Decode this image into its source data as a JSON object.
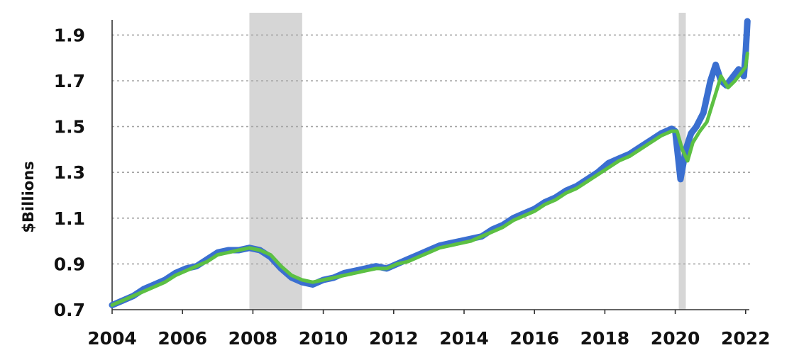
{
  "chart_data": {
    "type": "line",
    "title": "",
    "xlabel": "",
    "ylabel": "$Billions",
    "xlim": [
      2004,
      2022.1
    ],
    "ylim": [
      0.7,
      1.95
    ],
    "yticks": [
      "0.7",
      "0.9",
      "1.1",
      "1.3",
      "1.5",
      "1.7",
      "1.9"
    ],
    "xticks": [
      "2004",
      "2006",
      "2008",
      "2010",
      "2012",
      "2014",
      "2016",
      "2018",
      "2020",
      "2022"
    ],
    "grid": "horizontal-dotted",
    "legend": "none",
    "recessions": [
      [
        2007.9,
        2009.4
      ],
      [
        2020.1,
        2020.3
      ]
    ],
    "series": [
      {
        "color": "#3a6fd0",
        "role": "monthly",
        "x": [
          2004.0,
          2004.3,
          2004.6,
          2004.9,
          2005.2,
          2005.5,
          2005.8,
          2006.1,
          2006.4,
          2006.7,
          2007.0,
          2007.3,
          2007.6,
          2007.9,
          2008.2,
          2008.5,
          2008.8,
          2009.1,
          2009.4,
          2009.7,
          2010.0,
          2010.3,
          2010.6,
          2010.9,
          2011.2,
          2011.5,
          2011.8,
          2012.1,
          2012.4,
          2012.7,
          2013.0,
          2013.3,
          2013.6,
          2013.9,
          2014.2,
          2014.5,
          2014.8,
          2015.1,
          2015.4,
          2015.7,
          2016.0,
          2016.3,
          2016.6,
          2016.9,
          2017.2,
          2017.5,
          2017.8,
          2018.1,
          2018.4,
          2018.7,
          2019.0,
          2019.3,
          2019.6,
          2019.9,
          2020.0,
          2020.15,
          2020.3,
          2020.45,
          2020.6,
          2020.8,
          2021.0,
          2021.15,
          2021.3,
          2021.45,
          2021.6,
          2021.8,
          2021.95,
          2022.0,
          2022.05
        ],
        "values": [
          0.72,
          0.74,
          0.76,
          0.79,
          0.81,
          0.83,
          0.86,
          0.88,
          0.89,
          0.92,
          0.95,
          0.96,
          0.96,
          0.97,
          0.96,
          0.93,
          0.88,
          0.84,
          0.82,
          0.81,
          0.83,
          0.84,
          0.86,
          0.87,
          0.88,
          0.89,
          0.88,
          0.9,
          0.92,
          0.94,
          0.96,
          0.98,
          0.99,
          1.0,
          1.01,
          1.02,
          1.05,
          1.07,
          1.1,
          1.12,
          1.14,
          1.17,
          1.19,
          1.22,
          1.24,
          1.27,
          1.3,
          1.34,
          1.36,
          1.38,
          1.41,
          1.44,
          1.47,
          1.49,
          1.48,
          1.27,
          1.4,
          1.47,
          1.5,
          1.56,
          1.7,
          1.77,
          1.7,
          1.68,
          1.71,
          1.75,
          1.72,
          1.82,
          1.96
        ]
      },
      {
        "color": "#5cc043",
        "role": "trend",
        "x": [
          2004.0,
          2004.3,
          2004.6,
          2004.9,
          2005.2,
          2005.5,
          2005.8,
          2006.1,
          2006.4,
          2006.7,
          2007.0,
          2007.3,
          2007.6,
          2007.9,
          2008.2,
          2008.5,
          2008.8,
          2009.1,
          2009.4,
          2009.7,
          2010.0,
          2010.3,
          2010.6,
          2010.9,
          2011.2,
          2011.5,
          2011.8,
          2012.1,
          2012.4,
          2012.7,
          2013.0,
          2013.3,
          2013.6,
          2013.9,
          2014.2,
          2014.5,
          2014.8,
          2015.1,
          2015.4,
          2015.7,
          2016.0,
          2016.3,
          2016.6,
          2016.9,
          2017.2,
          2017.5,
          2017.8,
          2018.1,
          2018.4,
          2018.7,
          2019.0,
          2019.3,
          2019.6,
          2019.9,
          2020.05,
          2020.2,
          2020.35,
          2020.5,
          2020.7,
          2020.9,
          2021.1,
          2021.3,
          2021.5,
          2021.7,
          2021.9,
          2022.0,
          2022.05
        ],
        "values": [
          0.72,
          0.74,
          0.76,
          0.78,
          0.8,
          0.82,
          0.85,
          0.87,
          0.89,
          0.91,
          0.94,
          0.95,
          0.96,
          0.97,
          0.96,
          0.94,
          0.89,
          0.85,
          0.83,
          0.82,
          0.83,
          0.84,
          0.85,
          0.86,
          0.87,
          0.88,
          0.88,
          0.9,
          0.91,
          0.93,
          0.95,
          0.97,
          0.98,
          0.99,
          1.0,
          1.02,
          1.04,
          1.06,
          1.09,
          1.11,
          1.13,
          1.16,
          1.18,
          1.21,
          1.23,
          1.26,
          1.29,
          1.32,
          1.35,
          1.37,
          1.4,
          1.43,
          1.46,
          1.48,
          1.48,
          1.4,
          1.35,
          1.43,
          1.48,
          1.52,
          1.62,
          1.72,
          1.67,
          1.7,
          1.74,
          1.76,
          1.82
        ]
      }
    ]
  }
}
